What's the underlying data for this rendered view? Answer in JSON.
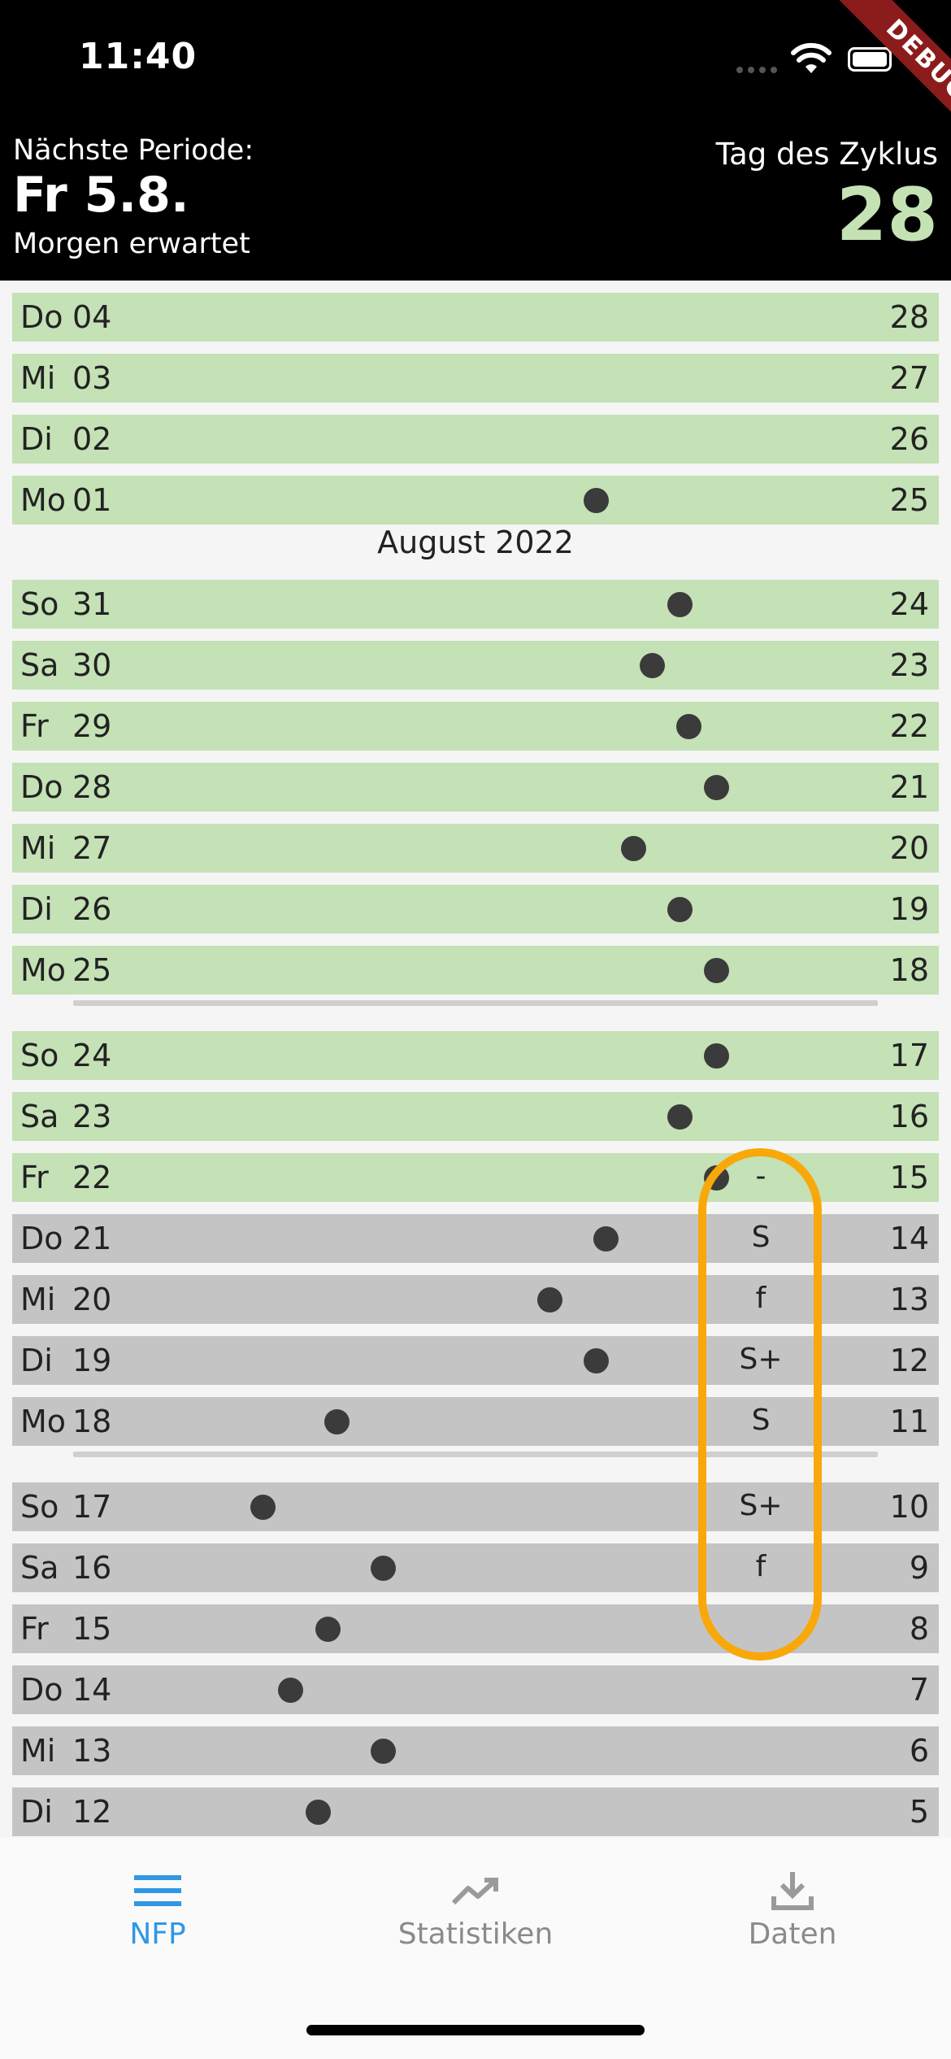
{
  "status_bar": {
    "time": "11:40"
  },
  "debug_banner": "DEBUG",
  "header": {
    "next_period_label": "Nächste Periode:",
    "next_period_date": "Fr 5.8.",
    "next_period_note": "Morgen erwartet",
    "cycle_day_label": "Tag des Zyklus",
    "cycle_day": "28"
  },
  "colors": {
    "fertile_green": "#c5e1b6",
    "infertile_grey": "#c4c4c4",
    "highlight_orange": "#f9a80a",
    "accent_blue": "#2f97e4"
  },
  "list": {
    "month_label": "August 2022",
    "rows": [
      {
        "weekday": "Do",
        "day": "04",
        "cycle": "28",
        "phase": "green",
        "temp_level": null,
        "mucus": ""
      },
      {
        "weekday": "Mi",
        "day": "03",
        "cycle": "27",
        "phase": "green",
        "temp_level": null,
        "mucus": ""
      },
      {
        "weekday": "Di",
        "day": "02",
        "cycle": "26",
        "phase": "green",
        "temp_level": null,
        "mucus": ""
      },
      {
        "weekday": "Mo",
        "day": "01",
        "cycle": "25",
        "phase": "green",
        "temp_level": 0.63,
        "mucus": ""
      },
      {
        "weekday": "So",
        "day": "31",
        "cycle": "24",
        "phase": "green",
        "temp_level": 0.72,
        "mucus": ""
      },
      {
        "weekday": "Sa",
        "day": "30",
        "cycle": "23",
        "phase": "green",
        "temp_level": 0.69,
        "mucus": ""
      },
      {
        "weekday": "Fr",
        "day": "29",
        "cycle": "22",
        "phase": "green",
        "temp_level": 0.73,
        "mucus": ""
      },
      {
        "weekday": "Do",
        "day": "28",
        "cycle": "21",
        "phase": "green",
        "temp_level": 0.76,
        "mucus": ""
      },
      {
        "weekday": "Mi",
        "day": "27",
        "cycle": "20",
        "phase": "green",
        "temp_level": 0.67,
        "mucus": ""
      },
      {
        "weekday": "Di",
        "day": "26",
        "cycle": "19",
        "phase": "green",
        "temp_level": 0.72,
        "mucus": ""
      },
      {
        "weekday": "Mo",
        "day": "25",
        "cycle": "18",
        "phase": "green",
        "temp_level": 0.76,
        "mucus": ""
      },
      {
        "weekday": "So",
        "day": "24",
        "cycle": "17",
        "phase": "green",
        "temp_level": 0.76,
        "mucus": ""
      },
      {
        "weekday": "Sa",
        "day": "23",
        "cycle": "16",
        "phase": "green",
        "temp_level": 0.72,
        "mucus": ""
      },
      {
        "weekday": "Fr",
        "day": "22",
        "cycle": "15",
        "phase": "green",
        "temp_level": 0.76,
        "mucus": "-"
      },
      {
        "weekday": "Do",
        "day": "21",
        "cycle": "14",
        "phase": "grey",
        "temp_level": 0.64,
        "mucus": "S"
      },
      {
        "weekday": "Mi",
        "day": "20",
        "cycle": "13",
        "phase": "grey",
        "temp_level": 0.58,
        "mucus": "f"
      },
      {
        "weekday": "Di",
        "day": "19",
        "cycle": "12",
        "phase": "grey",
        "temp_level": 0.63,
        "mucus": "S+"
      },
      {
        "weekday": "Mo",
        "day": "18",
        "cycle": "11",
        "phase": "grey",
        "temp_level": 0.35,
        "mucus": "S"
      },
      {
        "weekday": "So",
        "day": "17",
        "cycle": "10",
        "phase": "grey",
        "temp_level": 0.27,
        "mucus": "S+"
      },
      {
        "weekday": "Sa",
        "day": "16",
        "cycle": "9",
        "phase": "grey",
        "temp_level": 0.4,
        "mucus": "f"
      },
      {
        "weekday": "Fr",
        "day": "15",
        "cycle": "8",
        "phase": "grey",
        "temp_level": 0.34,
        "mucus": ""
      },
      {
        "weekday": "Do",
        "day": "14",
        "cycle": "7",
        "phase": "grey",
        "temp_level": 0.3,
        "mucus": ""
      },
      {
        "weekday": "Mi",
        "day": "13",
        "cycle": "6",
        "phase": "grey",
        "temp_level": 0.4,
        "mucus": ""
      },
      {
        "weekday": "Di",
        "day": "12",
        "cycle": "5",
        "phase": "grey",
        "temp_level": 0.33,
        "mucus": ""
      }
    ]
  },
  "bottom_nav": {
    "items": [
      {
        "label": "NFP",
        "icon": "menu-icon",
        "active": true
      },
      {
        "label": "Statistiken",
        "icon": "trending-up-icon",
        "active": false
      },
      {
        "label": "Daten",
        "icon": "download-icon",
        "active": false
      }
    ]
  }
}
